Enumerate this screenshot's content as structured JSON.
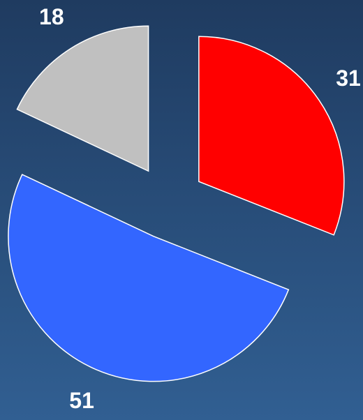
{
  "chart_data": {
    "type": "pie",
    "values": [
      31,
      51,
      18
    ],
    "colors": [
      "#ff0000",
      "#3366ff",
      "#c0c0c0"
    ],
    "exploded": true
  }
}
